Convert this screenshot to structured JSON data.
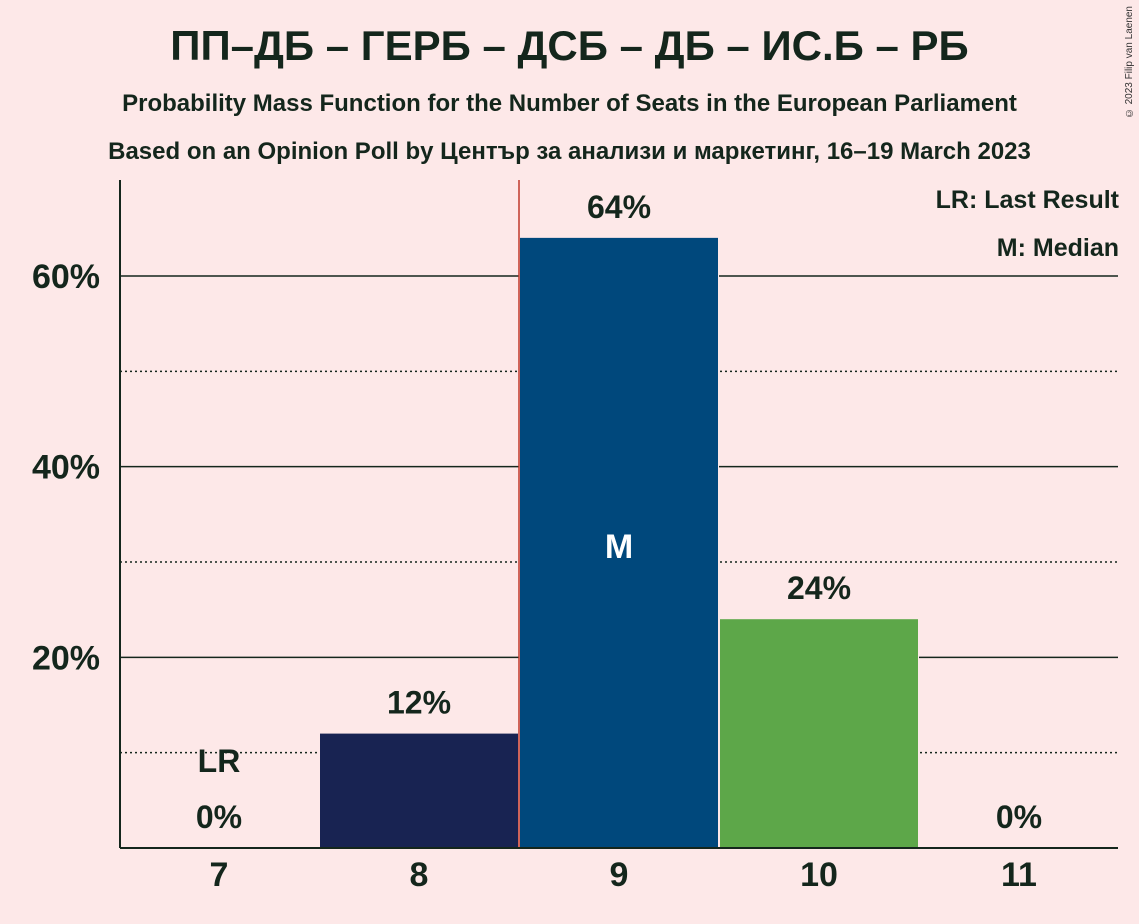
{
  "title": "ПП–ДБ – ГЕРБ – ДСБ – ДБ – ИС.Б – РБ",
  "subtitle1": "Probability Mass Function for the Number of Seats in the European Parliament",
  "subtitle2": "Based on an Opinion Poll by Център за анализи и маркетинг, 16–19 March 2023",
  "copyright": "© 2023 Filip van Laenen",
  "legend": {
    "last_result": "LR: Last Result",
    "median": "M: Median"
  },
  "colors": {
    "background": "#FDE8E8",
    "bar_8": "#182352",
    "bar_9": "#00487C",
    "bar_10": "#5DA749",
    "last_result_line": "#C0392B"
  },
  "chart_data": {
    "type": "bar",
    "categories": [
      "7",
      "8",
      "9",
      "10",
      "11"
    ],
    "values": [
      0,
      12,
      64,
      24,
      0
    ],
    "value_labels": [
      "0%",
      "12%",
      "64%",
      "24%",
      "0%"
    ],
    "bar_labels": [
      "",
      "",
      "M",
      "",
      ""
    ],
    "last_result_seats": "7",
    "last_result_label": "LR",
    "median_seats": "9",
    "ylim": [
      0,
      70
    ],
    "yticks": [
      20,
      40,
      60
    ],
    "ytick_labels": [
      "20%",
      "40%",
      "60%"
    ],
    "minor_gridlines": [
      10,
      30,
      50
    ],
    "xlabel": "",
    "ylabel": ""
  }
}
